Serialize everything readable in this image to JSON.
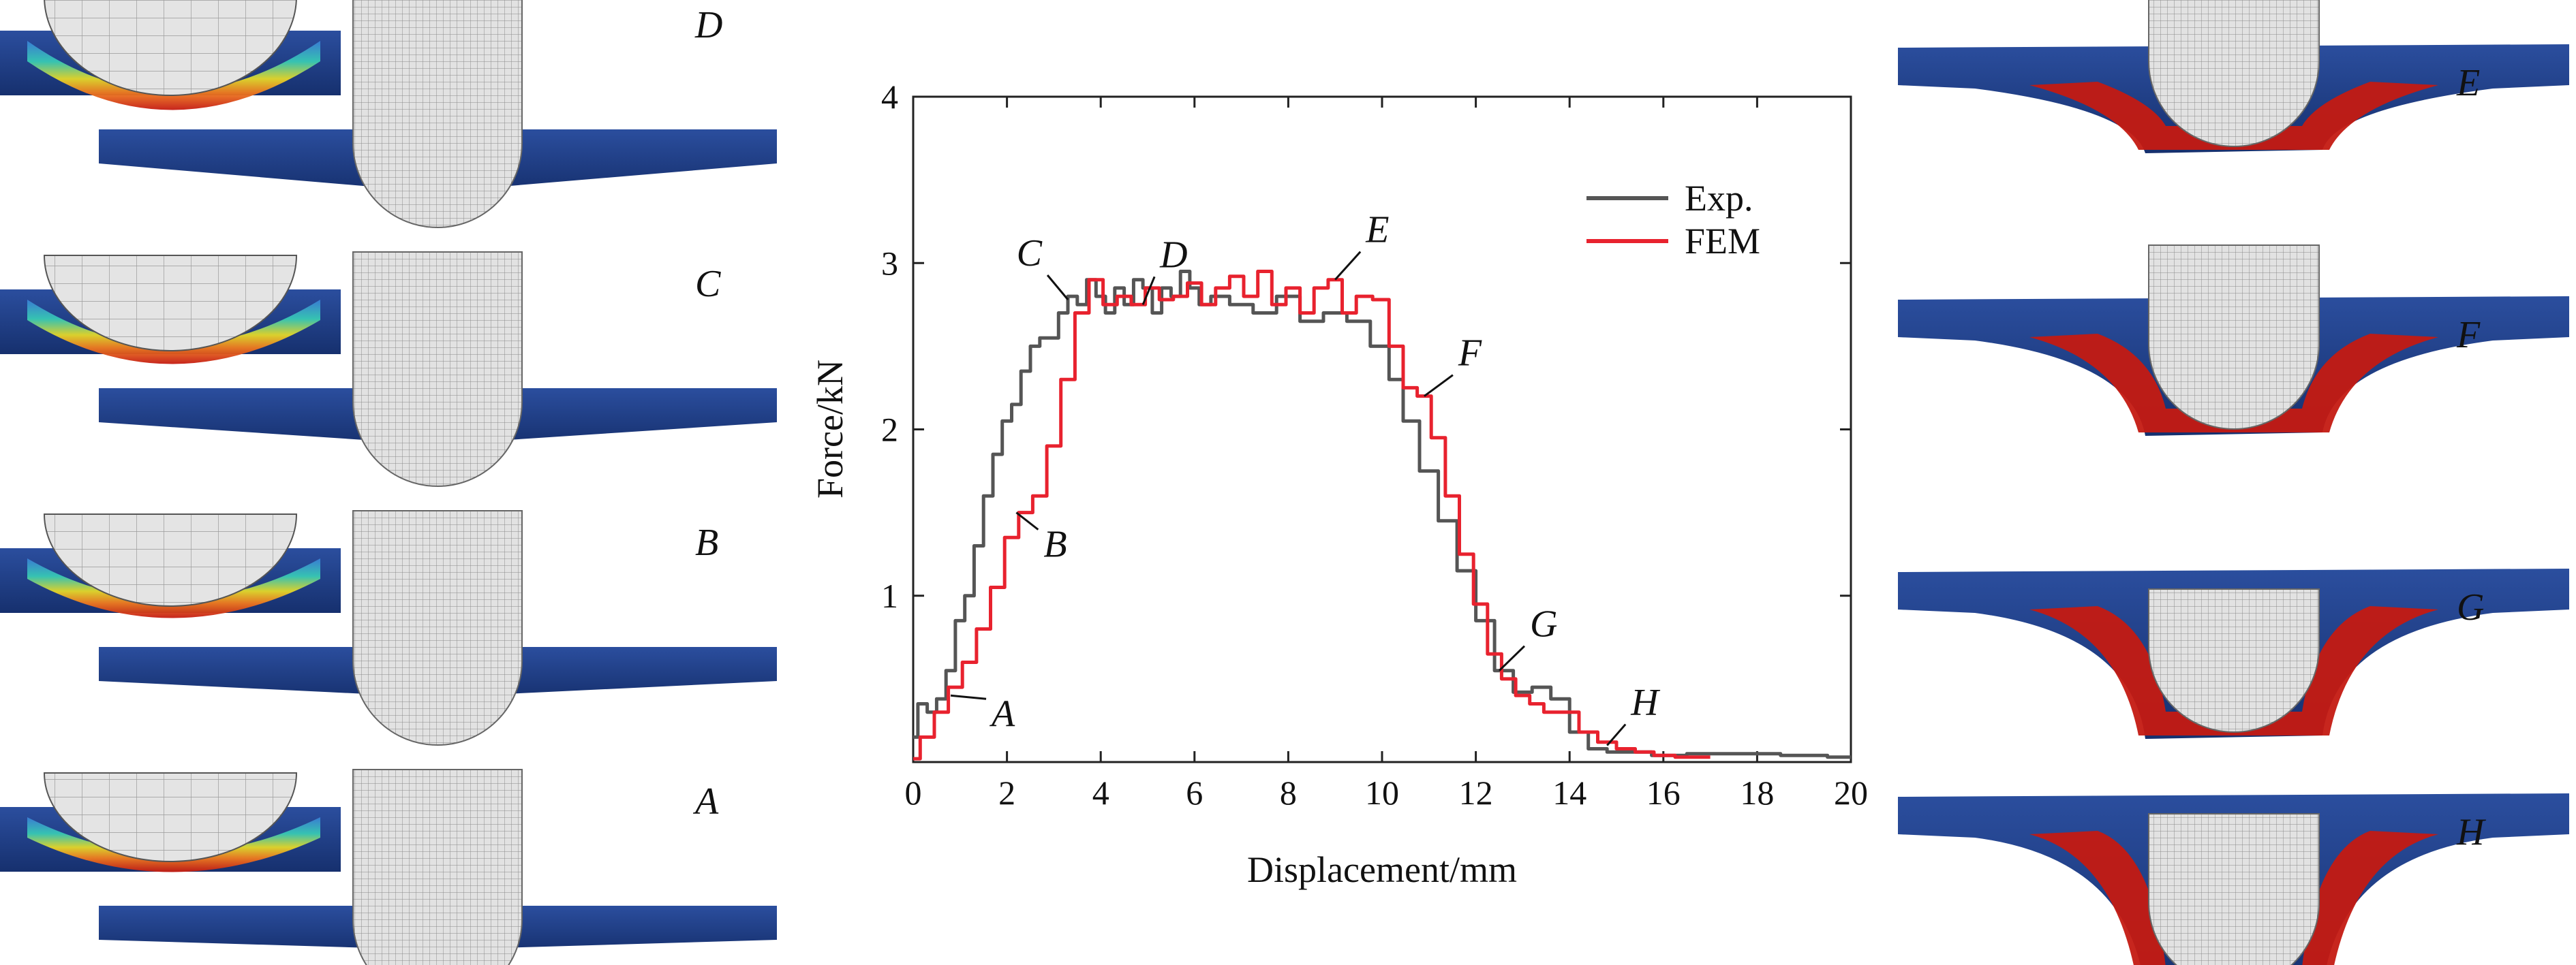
{
  "figure": {
    "left_panels": [
      {
        "id": "panel-d",
        "label": "D"
      },
      {
        "id": "panel-c",
        "label": "C"
      },
      {
        "id": "panel-b",
        "label": "B"
      },
      {
        "id": "panel-a",
        "label": "A"
      }
    ],
    "right_panels": [
      {
        "id": "panel-e",
        "label": "E"
      },
      {
        "id": "panel-f",
        "label": "F"
      },
      {
        "id": "panel-g",
        "label": "G"
      },
      {
        "id": "panel-h",
        "label": "H"
      }
    ]
  },
  "colors": {
    "exp": "#555555",
    "fem": "#e8222e",
    "plate": "#1f3f8a",
    "damage": "#c41a12",
    "mesh": "#d8d8d8"
  },
  "chart_data": {
    "type": "line",
    "title": "",
    "xlabel": "Displacement/mm",
    "ylabel": "Force/kN",
    "xlim": [
      0,
      20
    ],
    "ylim": [
      0,
      4
    ],
    "xticks": [
      "0",
      "2",
      "4",
      "6",
      "8",
      "10",
      "12",
      "14",
      "16",
      "18",
      "20"
    ],
    "yticks": [
      "1",
      "2",
      "3",
      "4"
    ],
    "grid": false,
    "legend_position": "top-right",
    "series": [
      {
        "name": "Exp.",
        "color": "#555555",
        "x": [
          0,
          0.2,
          0.4,
          0.6,
          0.8,
          1.0,
          1.2,
          1.4,
          1.6,
          1.8,
          2.0,
          2.2,
          2.4,
          2.6,
          2.8,
          3.0,
          3.2,
          3.4,
          3.6,
          3.8,
          4.0,
          4.2,
          4.4,
          4.6,
          4.8,
          5.0,
          5.2,
          5.4,
          5.6,
          5.8,
          6.0,
          6.2,
          6.5,
          7.0,
          7.5,
          8.0,
          8.5,
          9.0,
          9.5,
          10.0,
          10.3,
          10.6,
          11.0,
          11.4,
          11.8,
          12.2,
          12.6,
          13.0,
          13.4,
          13.8,
          14.2,
          14.6,
          15.0,
          15.5,
          16.0,
          17.0,
          18.0,
          19.0,
          20.0
        ],
        "y": [
          0.15,
          0.35,
          0.3,
          0.38,
          0.55,
          0.85,
          1.0,
          1.3,
          1.6,
          1.85,
          2.05,
          2.15,
          2.35,
          2.5,
          2.55,
          2.55,
          2.7,
          2.8,
          2.75,
          2.9,
          2.8,
          2.7,
          2.85,
          2.75,
          2.9,
          2.85,
          2.7,
          2.85,
          2.8,
          2.95,
          2.85,
          2.75,
          2.8,
          2.75,
          2.7,
          2.8,
          2.65,
          2.7,
          2.65,
          2.5,
          2.3,
          2.05,
          1.75,
          1.45,
          1.15,
          0.85,
          0.55,
          0.42,
          0.45,
          0.38,
          0.18,
          0.08,
          0.06,
          0.06,
          0.04,
          0.05,
          0.05,
          0.04,
          0.03
        ]
      },
      {
        "name": "FEM",
        "color": "#e8222e",
        "x": [
          0,
          0.3,
          0.6,
          0.9,
          1.2,
          1.5,
          1.8,
          2.1,
          2.4,
          2.7,
          3.0,
          3.3,
          3.6,
          3.9,
          4.2,
          4.5,
          4.8,
          5.1,
          5.4,
          5.7,
          6.0,
          6.3,
          6.6,
          6.9,
          7.2,
          7.5,
          7.8,
          8.1,
          8.4,
          8.7,
          9.0,
          9.3,
          9.6,
          10.0,
          10.3,
          10.6,
          10.9,
          11.2,
          11.5,
          11.8,
          12.1,
          12.4,
          12.7,
          13.0,
          13.3,
          13.6,
          14.0,
          14.4,
          14.8,
          15.2,
          15.6,
          16.0,
          16.5,
          17.0
        ],
        "y": [
          0.02,
          0.15,
          0.3,
          0.45,
          0.6,
          0.8,
          1.05,
          1.35,
          1.5,
          1.6,
          1.9,
          2.3,
          2.7,
          2.9,
          2.75,
          2.8,
          2.75,
          2.85,
          2.78,
          2.8,
          2.88,
          2.75,
          2.85,
          2.92,
          2.8,
          2.95,
          2.75,
          2.85,
          2.7,
          2.85,
          2.9,
          2.7,
          2.8,
          2.78,
          2.5,
          2.25,
          2.2,
          1.95,
          1.6,
          1.25,
          0.95,
          0.65,
          0.5,
          0.4,
          0.35,
          0.3,
          0.3,
          0.18,
          0.12,
          0.08,
          0.06,
          0.04,
          0.03,
          0.03
        ]
      }
    ],
    "point_labels": [
      {
        "label": "A",
        "x": 0.8,
        "y": 0.4
      },
      {
        "label": "B",
        "x": 2.2,
        "y": 1.5
      },
      {
        "label": "C",
        "x": 3.3,
        "y": 2.78
      },
      {
        "label": "D",
        "x": 4.9,
        "y": 2.75
      },
      {
        "label": "E",
        "x": 9.0,
        "y": 2.9
      },
      {
        "label": "F",
        "x": 10.9,
        "y": 2.2
      },
      {
        "label": "G",
        "x": 12.5,
        "y": 0.55
      },
      {
        "label": "H",
        "x": 14.8,
        "y": 0.1
      }
    ]
  }
}
